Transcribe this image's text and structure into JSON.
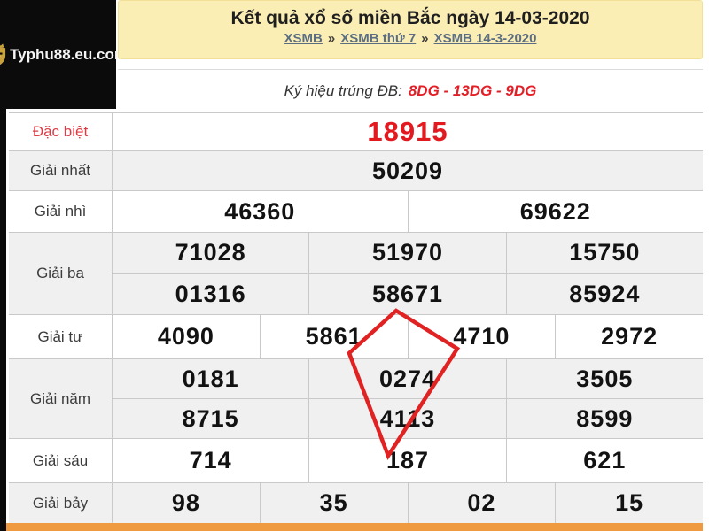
{
  "logo": {
    "text": "Typhu88.eu.com",
    "icon": "shield-crown-icon"
  },
  "header": {
    "title": "Kết quả xổ số miền Bắc ngày 14-03-2020",
    "breadcrumb": [
      {
        "label": "XSMB"
      },
      {
        "label": "XSMB thứ 7"
      },
      {
        "label": "XSMB 14-3-2020"
      }
    ],
    "breadcrumb_separator": "»"
  },
  "symbol_row": {
    "label": "Ký hiệu trúng ĐB:",
    "value": "8DG - 13DG - 9DG"
  },
  "results_table": {
    "rows": [
      {
        "label": "Đặc biệt",
        "highlight": true,
        "lines": [
          [
            "18915"
          ]
        ]
      },
      {
        "label": "Giải nhất",
        "highlight": false,
        "lines": [
          [
            "50209"
          ]
        ]
      },
      {
        "label": "Giải nhì",
        "highlight": false,
        "lines": [
          [
            "46360",
            "69622"
          ]
        ]
      },
      {
        "label": "Giải ba",
        "highlight": false,
        "lines": [
          [
            "71028",
            "51970",
            "15750"
          ],
          [
            "01316",
            "58671",
            "85924"
          ]
        ]
      },
      {
        "label": "Giải tư",
        "highlight": false,
        "lines": [
          [
            "4090",
            "5861",
            "4710",
            "2972"
          ]
        ]
      },
      {
        "label": "Giải năm",
        "highlight": false,
        "lines": [
          [
            "0181",
            "0274",
            "3505"
          ],
          [
            "8715",
            "4113",
            "8599"
          ]
        ]
      },
      {
        "label": "Giải sáu",
        "highlight": false,
        "lines": [
          [
            "714",
            "187",
            "621"
          ]
        ]
      },
      {
        "label": "Giải bảy",
        "highlight": false,
        "lines": [
          [
            "98",
            "35",
            "02",
            "15"
          ]
        ]
      }
    ]
  },
  "annotation": {
    "shape": "red-diamond-highlight",
    "color": "#e02222"
  },
  "colors": {
    "header_yellow": "#fbeeb4",
    "special_red": "#e2191f",
    "orange_bar": "#ef9a40",
    "logo_black": "#0b0b0b",
    "logo_gold": "#c9a23f"
  }
}
